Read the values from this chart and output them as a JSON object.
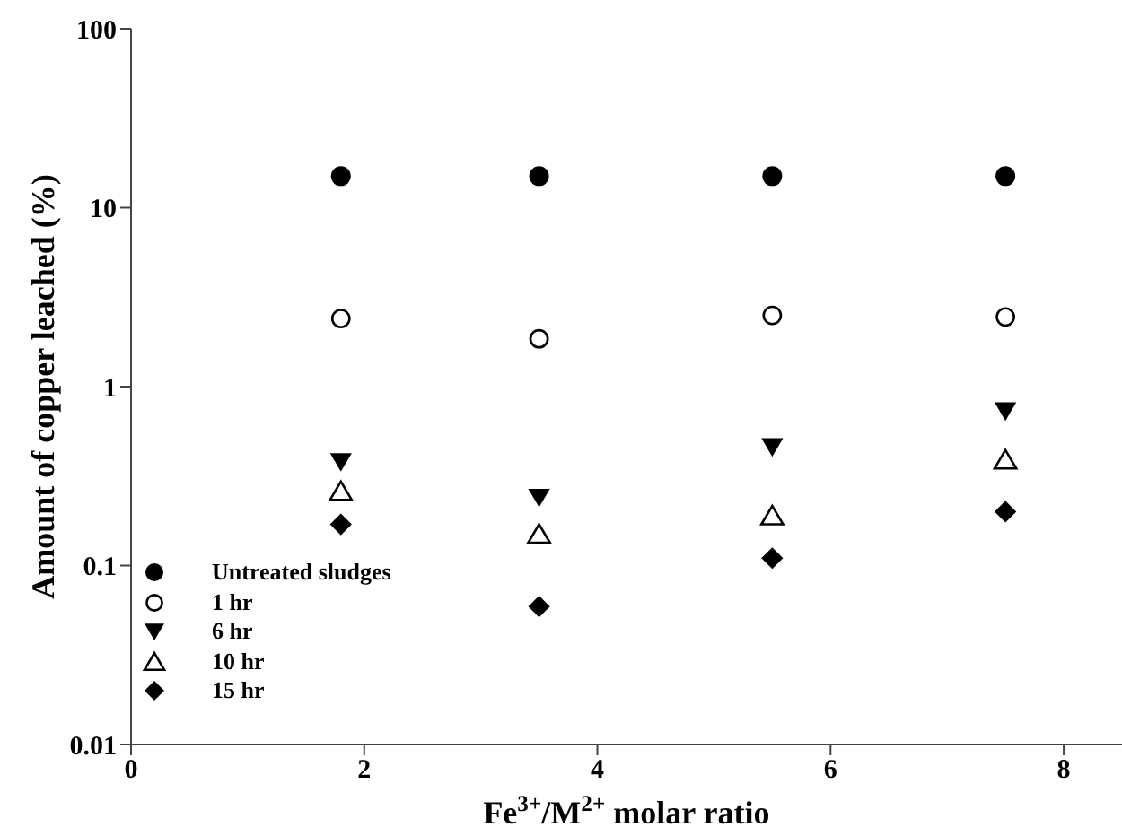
{
  "chart_data": {
    "type": "scatter",
    "xlabel": "Fe$^{3+}$/M$^{2+}$ molar ratio",
    "ylabel": "Amount of copper leached (%)",
    "x": [
      1.8,
      3.5,
      5.5,
      7.5
    ],
    "log": "y",
    "xlim": [
      0,
      8.5
    ],
    "xticks": [
      0,
      2,
      4,
      6,
      8
    ],
    "ylim": [
      0.01,
      100
    ],
    "yticks": [
      0.01,
      0.1,
      1,
      10,
      100
    ],
    "grid": false,
    "legend": "bottom left",
    "series": [
      {
        "name": "Untreated sludges",
        "color": "#000000",
        "marker": "circle",
        "values": [
          15,
          15,
          15,
          15
        ]
      },
      {
        "name": "1 hr",
        "color": "#000000",
        "marker": "circle-open",
        "values": [
          2.4,
          1.85,
          2.5,
          2.45
        ]
      },
      {
        "name": "6 hr",
        "color": "#000000",
        "marker": "triangle-down",
        "values": [
          0.38,
          0.24,
          0.46,
          0.73
        ]
      },
      {
        "name": "10 hr",
        "color": "#000000",
        "marker": "triangle-open",
        "values": [
          0.26,
          0.15,
          0.19,
          0.39
        ]
      },
      {
        "name": "15 hr",
        "color": "#000000",
        "marker": "diamond",
        "values": [
          0.17,
          0.059,
          0.11,
          0.2
        ]
      }
    ]
  }
}
